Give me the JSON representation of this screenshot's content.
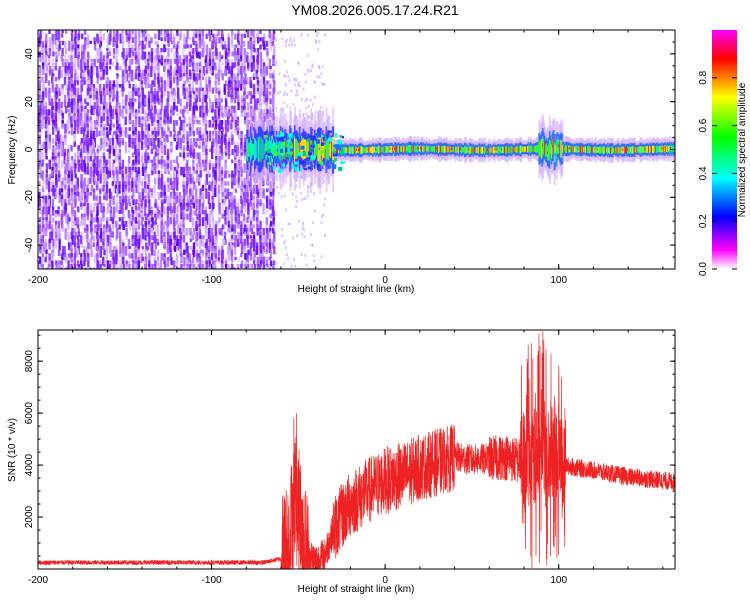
{
  "title": "YM08.2026.005.17.24.R21",
  "chart_data": [
    {
      "type": "heatmap",
      "xlabel": "Height of straight line (km)",
      "ylabel": "Frequency (Hz)",
      "xlim": [
        -200,
        167
      ],
      "ylim": [
        -50,
        50
      ],
      "xticks": [
        -200,
        -100,
        0,
        100
      ],
      "yticks": [
        -40,
        -20,
        0,
        20,
        40
      ],
      "noise_region_km": [
        -200,
        -65
      ],
      "signal_region_km": [
        -80,
        167
      ],
      "colorbar": {
        "label": "Normalized spectral amplitude",
        "range": [
          0,
          1
        ],
        "ticks": [
          "0.0",
          "0.2",
          "0.4",
          "0.6",
          "0.8"
        ],
        "colors": [
          "#ffffff",
          "#ff00ff",
          "#0000ff",
          "#00ffff",
          "#00ff00",
          "#ffff00",
          "#ff0000",
          "#ff00ff"
        ]
      }
    },
    {
      "type": "line",
      "xlabel": "Height of straight line (km)",
      "ylabel": "SNR (10 * v/v)",
      "xlim": [
        -200,
        167
      ],
      "ylim": [
        0,
        9200
      ],
      "xticks": [
        -200,
        -100,
        0,
        100
      ],
      "yticks": [
        2000,
        4000,
        6000,
        8000
      ],
      "color": "#ee2222",
      "envelope": {
        "x": [
          -200,
          -70,
          -60,
          -55,
          -52,
          -48,
          -45,
          -40,
          -35,
          -30,
          -20,
          -10,
          0,
          10,
          20,
          30,
          40,
          50,
          60,
          70,
          80,
          85,
          90,
          95,
          100,
          103,
          110,
          120,
          140,
          167
        ],
        "y": [
          250,
          250,
          400,
          1200,
          3000,
          1500,
          600,
          300,
          500,
          1500,
          2500,
          3000,
          3400,
          3600,
          3900,
          4100,
          4300,
          4200,
          4250,
          4300,
          4100,
          4300,
          4800,
          4400,
          4800,
          4000,
          3900,
          3800,
          3550,
          3350
        ]
      }
    }
  ]
}
